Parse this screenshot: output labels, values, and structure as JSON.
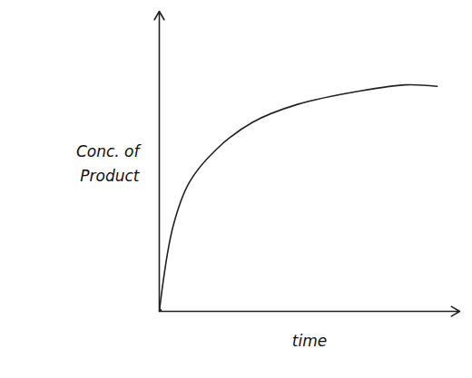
{
  "chart_data": {
    "type": "line",
    "x_label": "time",
    "y_label": "Conc. of Product",
    "x": [
      0,
      0.45,
      1.0,
      1.9,
      3.1,
      4.6,
      6.7,
      8.2,
      9.25
    ],
    "values": [
      0,
      2.8,
      4.3,
      5.4,
      6.3,
      6.9,
      7.35,
      7.55,
      7.5
    ],
    "xlim": [
      0,
      10
    ],
    "ylim": [
      0,
      10
    ],
    "xticks": [],
    "yticks": [],
    "tick_labels": false,
    "grid": false,
    "color": "#222222",
    "marker": "none"
  }
}
